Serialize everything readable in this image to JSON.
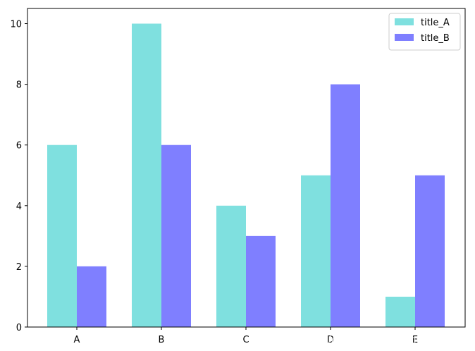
{
  "chart_data": {
    "type": "bar",
    "categories": [
      "A",
      "B",
      "C",
      "D",
      "E"
    ],
    "series": [
      {
        "name": "title_A",
        "values": [
          6,
          10,
          4,
          5,
          1
        ],
        "color": "#7fe0df"
      },
      {
        "name": "title_B",
        "values": [
          2,
          6,
          3,
          8,
          5
        ],
        "color": "#7f7fff"
      }
    ],
    "ylim": [
      0,
      10.5
    ],
    "yticks": [
      "0",
      "2",
      "4",
      "6",
      "8",
      "10"
    ],
    "grid": false,
    "legend_position": "top-right"
  },
  "watermark": "https://blog.csdn.net/kenyuan666"
}
